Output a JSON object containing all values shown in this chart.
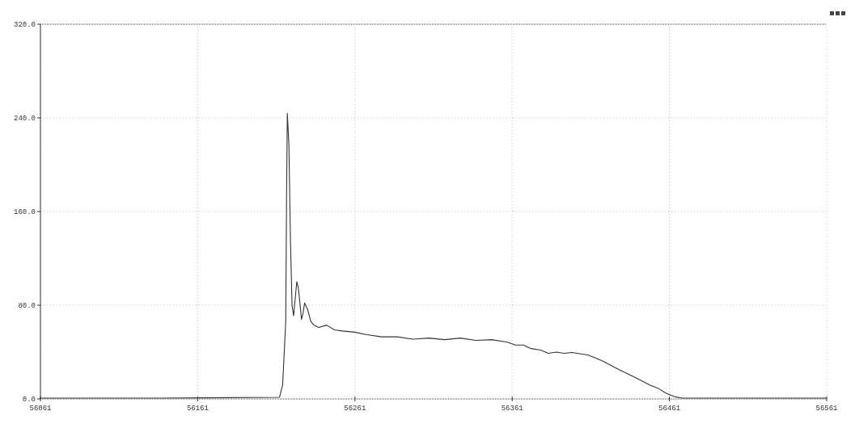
{
  "chart_data": {
    "type": "line",
    "x": [
      56061,
      56137,
      56213,
      56215,
      56217,
      56217.5,
      56218,
      56219,
      56220,
      56221,
      56222,
      56224,
      56225,
      56226,
      56227,
      56228,
      56229,
      56231,
      56233,
      56235,
      56238,
      56243,
      56248,
      56253,
      56261,
      56268,
      56278,
      56288,
      56298,
      56308,
      56318,
      56328,
      56338,
      56348,
      56358,
      56363,
      56368,
      56373,
      56379,
      56384,
      56389,
      56394,
      56399,
      56409,
      56414,
      56419,
      56429,
      56439,
      56449,
      56454,
      56459,
      56464,
      56469,
      56489,
      56561
    ],
    "series": [
      {
        "color": "#333333",
        "values": [
          0.7,
          0.7,
          1.4,
          11.6,
          66,
          169,
          244,
          217,
          135,
          80,
          71,
          100,
          95,
          82,
          68,
          73,
          82,
          76,
          66,
          63,
          61,
          63,
          59,
          58,
          57,
          55,
          53,
          53,
          51,
          52,
          50.6,
          52,
          50,
          50.6,
          48.5,
          46,
          46,
          43,
          41.7,
          39,
          40,
          39,
          39.7,
          37.6,
          35,
          32,
          25,
          18.5,
          11.6,
          8.9,
          4.8,
          2,
          0.7,
          0.7,
          0.7
        ]
      }
    ],
    "xlim": [
      56061,
      56561
    ],
    "xticks": [
      56061,
      56161,
      56261,
      56361,
      56461,
      56561
    ],
    "ylim": [
      0,
      320
    ],
    "yticks": [
      {
        "value": 0,
        "label": "0.0"
      },
      {
        "value": 80,
        "label": "80.0"
      },
      {
        "value": 160,
        "label": "160.0"
      },
      {
        "value": 240,
        "label": "240.0"
      },
      {
        "value": 320,
        "label": "320.0"
      }
    ],
    "grid": true,
    "line_style": "solid",
    "marker": "none"
  }
}
